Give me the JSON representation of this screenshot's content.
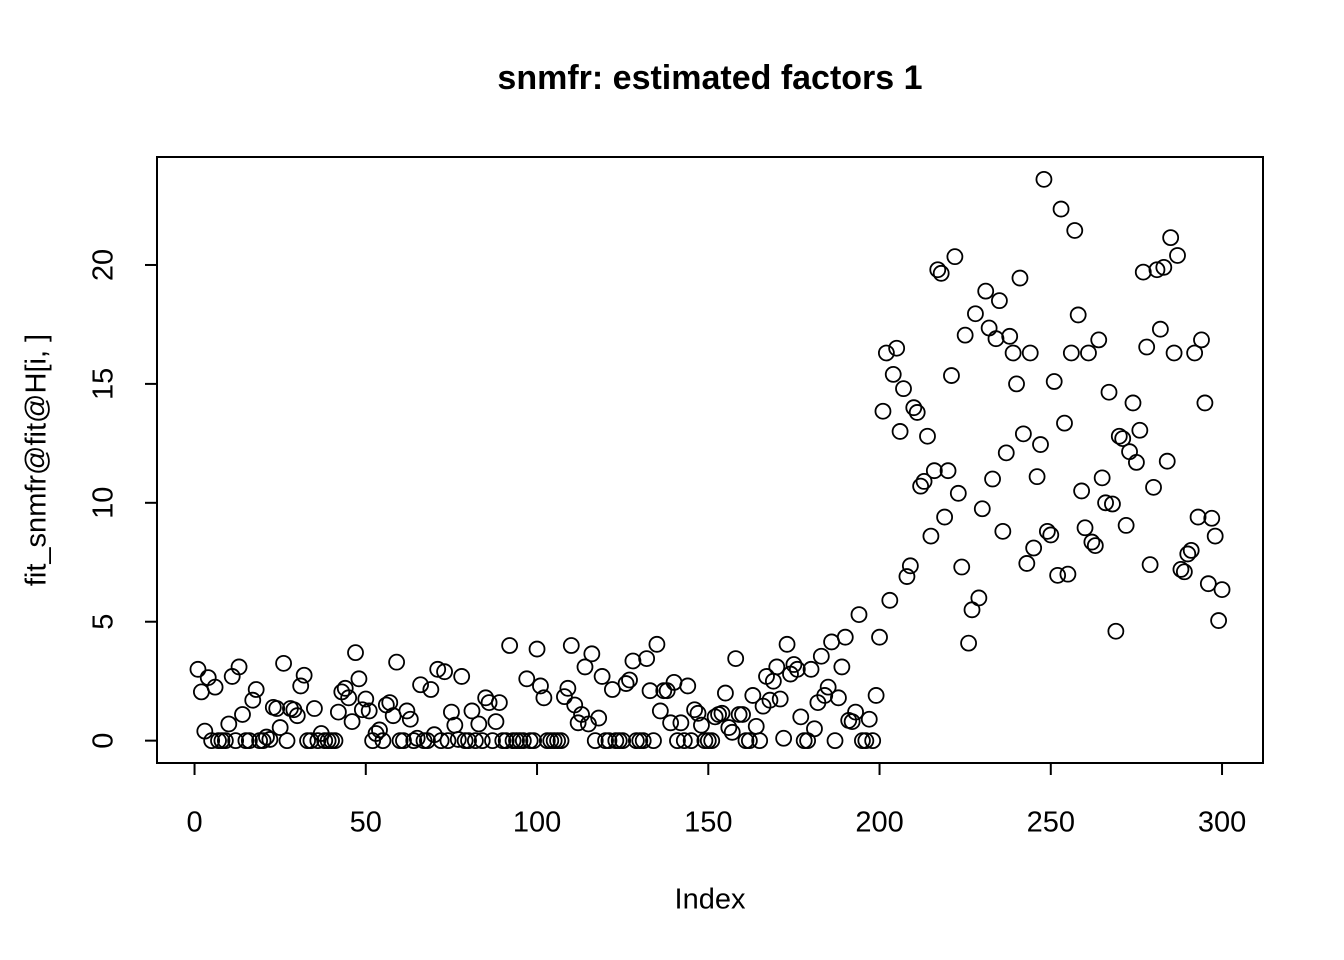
{
  "chart_data": {
    "type": "scatter",
    "title": "snmfr: estimated factors 1",
    "x_label": "Index",
    "y_label": "fit_snmfr@fit@H[i, ]",
    "xlim": [
      -10.96,
      311.96
    ],
    "ylim": [
      -0.94,
      24.54
    ],
    "xticks": [
      0,
      50,
      100,
      150,
      200,
      250,
      300
    ],
    "yticks": [
      0,
      5,
      10,
      15,
      20
    ],
    "color": "#000000",
    "x": [
      1,
      2,
      3,
      4,
      5,
      6,
      7,
      8,
      9,
      10,
      11,
      12,
      13,
      14,
      15,
      16,
      17,
      18,
      19,
      20,
      21,
      22,
      23,
      24,
      25,
      26,
      27,
      28,
      29,
      30,
      31,
      32,
      33,
      34,
      35,
      36,
      37,
      38,
      39,
      40,
      41,
      42,
      43,
      44,
      45,
      46,
      47,
      48,
      49,
      50,
      51,
      52,
      53,
      54,
      55,
      56,
      57,
      58,
      59,
      60,
      61,
      62,
      63,
      64,
      65,
      66,
      67,
      68,
      69,
      70,
      71,
      72,
      73,
      74,
      75,
      76,
      77,
      78,
      79,
      80,
      81,
      82,
      83,
      84,
      85,
      86,
      87,
      88,
      89,
      90,
      91,
      92,
      93,
      94,
      95,
      96,
      97,
      98,
      99,
      100,
      101,
      102,
      103,
      104,
      105,
      106,
      107,
      108,
      109,
      110,
      111,
      112,
      113,
      114,
      115,
      116,
      117,
      118,
      119,
      120,
      121,
      122,
      123,
      124,
      125,
      126,
      127,
      128,
      129,
      130,
      131,
      132,
      133,
      134,
      135,
      136,
      137,
      138,
      139,
      140,
      141,
      142,
      143,
      144,
      145,
      146,
      147,
      148,
      149,
      150,
      151,
      152,
      153,
      154,
      155,
      156,
      157,
      158,
      159,
      160,
      161,
      162,
      163,
      164,
      165,
      166,
      167,
      168,
      169,
      170,
      171,
      172,
      173,
      174,
      175,
      176,
      177,
      178,
      179,
      180,
      181,
      182,
      183,
      184,
      185,
      186,
      187,
      188,
      189,
      190,
      191,
      192,
      193,
      194,
      195,
      196,
      197,
      198,
      199,
      200,
      201,
      202,
      203,
      204,
      205,
      206,
      207,
      208,
      209,
      210,
      211,
      212,
      213,
      214,
      215,
      216,
      217,
      218,
      219,
      220,
      221,
      222,
      223,
      224,
      225,
      226,
      227,
      228,
      229,
      230,
      231,
      232,
      233,
      234,
      235,
      236,
      237,
      238,
      239,
      240,
      241,
      242,
      243,
      244,
      245,
      246,
      247,
      248,
      249,
      250,
      251,
      252,
      253,
      254,
      255,
      256,
      257,
      258,
      259,
      260,
      261,
      262,
      263,
      264,
      265,
      266,
      267,
      268,
      269,
      270,
      271,
      272,
      273,
      274,
      275,
      276,
      277,
      278,
      279,
      280,
      281,
      282,
      283,
      284,
      285,
      286,
      287,
      288,
      289,
      290,
      291,
      292,
      293,
      294,
      295,
      296,
      297,
      298,
      299,
      300
    ],
    "values": [
      3.0,
      2.05,
      0.4,
      2.65,
      0,
      2.25,
      0,
      0,
      0,
      0.7,
      2.7,
      0,
      3.1,
      1.1,
      0,
      0,
      1.7,
      2.15,
      0,
      0,
      0.15,
      0.05,
      1.4,
      1.35,
      0.55,
      3.25,
      0,
      1.35,
      1.3,
      1.05,
      2.3,
      2.75,
      0,
      0,
      1.35,
      0,
      0.3,
      0,
      0,
      0,
      0,
      1.2,
      2.05,
      2.2,
      1.8,
      0.8,
      3.7,
      2.6,
      1.3,
      1.75,
      1.25,
      0,
      0.3,
      0.45,
      0,
      1.5,
      1.6,
      1.05,
      3.3,
      0,
      0,
      1.25,
      0.9,
      0,
      0.1,
      2.35,
      0,
      0,
      2.15,
      0.25,
      3.0,
      0,
      2.9,
      0,
      1.2,
      0.65,
      0.05,
      2.7,
      0,
      0,
      1.25,
      0,
      0.7,
      0,
      1.8,
      1.6,
      0,
      0.8,
      1.6,
      0,
      0,
      4.0,
      0,
      0,
      0,
      0,
      2.6,
      0,
      0,
      3.85,
      2.3,
      1.8,
      0,
      0,
      0,
      0,
      0,
      1.85,
      2.2,
      4.0,
      1.5,
      0.75,
      1.1,
      3.1,
      0.7,
      3.65,
      0,
      0.95,
      2.7,
      0,
      0,
      2.15,
      0,
      0,
      0,
      2.4,
      2.55,
      3.35,
      0,
      0,
      0,
      3.45,
      2.1,
      0,
      4.05,
      1.25,
      2.1,
      2.1,
      0.75,
      2.45,
      0,
      0.75,
      0,
      2.3,
      0,
      1.3,
      1.15,
      0.65,
      0,
      0,
      0,
      1.0,
      1.1,
      1.15,
      2.0,
      0.55,
      0.35,
      3.45,
      1.1,
      1.1,
      0,
      0,
      1.9,
      0.6,
      0,
      1.45,
      2.7,
      1.7,
      2.5,
      3.1,
      1.75,
      0.1,
      4.05,
      2.8,
      3.2,
      3.0,
      1.0,
      0,
      0,
      3.0,
      0.5,
      1.6,
      3.55,
      1.9,
      2.25,
      4.15,
      0,
      1.8,
      3.1,
      4.35,
      0.85,
      0.8,
      1.2,
      5.3,
      0,
      0,
      0.9,
      0,
      1.9,
      4.35,
      13.85,
      16.3,
      5.9,
      15.4,
      16.5,
      13.0,
      14.8,
      6.9,
      7.35,
      14.0,
      13.8,
      10.7,
      10.9,
      12.8,
      8.6,
      11.35,
      19.8,
      19.65,
      9.4,
      11.35,
      15.35,
      20.35,
      10.4,
      7.3,
      17.05,
      4.1,
      5.5,
      17.95,
      6.0,
      9.75,
      18.9,
      17.35,
      11.0,
      16.9,
      18.5,
      8.8,
      12.1,
      17.0,
      16.3,
      15.0,
      19.45,
      12.9,
      7.45,
      16.3,
      8.1,
      11.1,
      12.45,
      23.6,
      8.8,
      8.65,
      15.1,
      6.95,
      22.35,
      13.35,
      7.0,
      16.3,
      21.45,
      17.9,
      10.5,
      8.95,
      16.3,
      8.35,
      8.2,
      16.85,
      11.05,
      10.0,
      14.65,
      9.95,
      4.6,
      12.8,
      12.7,
      9.05,
      12.15,
      14.2,
      11.7,
      13.05,
      19.7,
      16.55,
      7.4,
      10.65,
      19.8,
      17.3,
      19.9,
      11.75,
      21.15,
      16.3,
      20.4,
      7.2,
      7.1,
      7.85,
      8.0,
      16.3,
      9.4,
      16.85,
      14.2,
      6.6,
      9.35,
      8.6,
      5.05,
      6.35
    ]
  }
}
